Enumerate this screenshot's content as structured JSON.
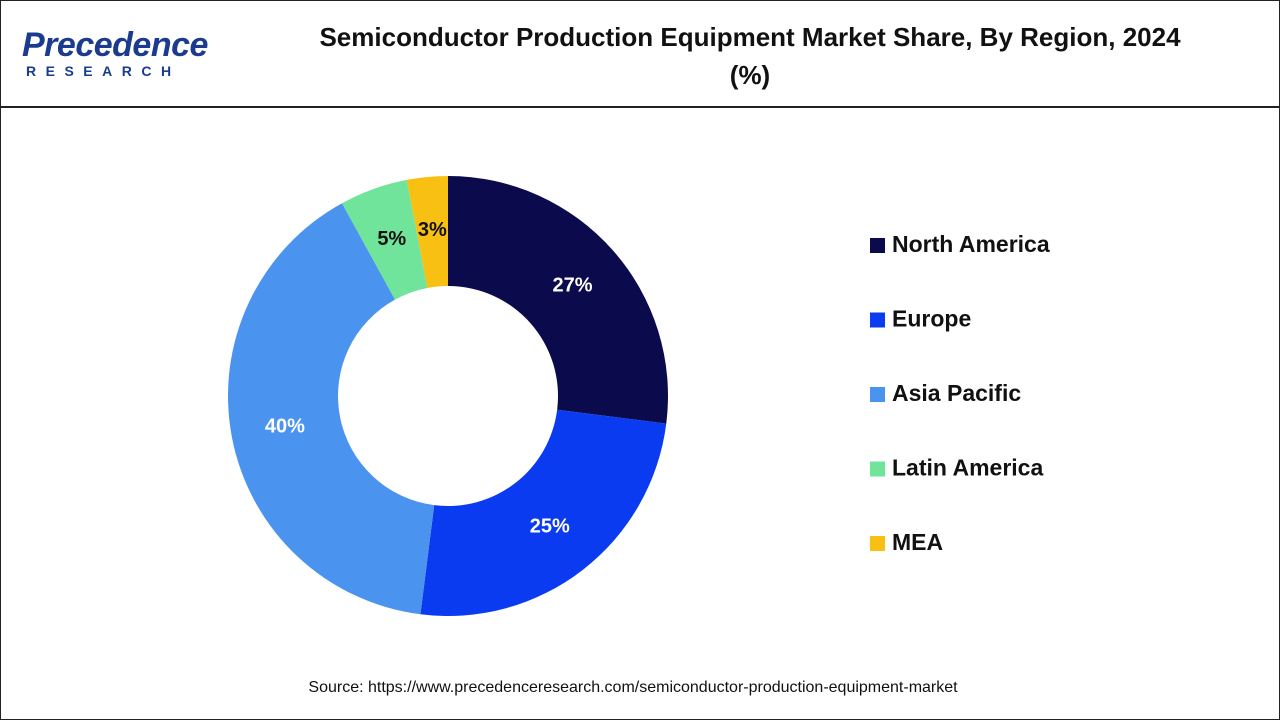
{
  "logo": {
    "name": "Precedence",
    "tagline": "RESEARCH"
  },
  "chart_data": {
    "type": "donut",
    "title": "Semiconductor Production Equipment Market Share, By Region, 2024 (%)",
    "categories": [
      "North America",
      "Europe",
      "Asia Pacific",
      "Latin America",
      "MEA"
    ],
    "values": [
      27,
      25,
      40,
      5,
      3
    ],
    "value_labels": [
      "27%",
      "25%",
      "40%",
      "5%",
      "3%"
    ],
    "colors": [
      "#0b0a4c",
      "#0b3bf0",
      "#4a93ee",
      "#6fe49a",
      "#f7c012"
    ],
    "legend": "right"
  },
  "source": "Source: https://www.precedenceresearch.com/semiconductor-production-equipment-market"
}
